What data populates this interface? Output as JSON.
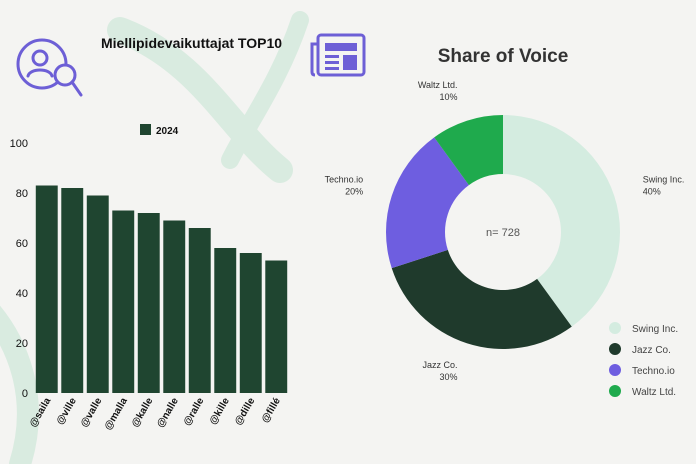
{
  "colors": {
    "background": "#f4f4f2",
    "bar": "#1f4530",
    "icon_purple": "#6d5fd6",
    "watermark": "#d9ebe0"
  },
  "icons": {
    "left": "user-search-icon",
    "right": "newspaper-icon"
  },
  "chart_data": [
    {
      "type": "bar",
      "title": "Miellipidevaikuttajat TOP10",
      "legend": [
        "2024"
      ],
      "categories": [
        "@saila",
        "@ville",
        "@valle",
        "@malla",
        "@kalle",
        "@nalle",
        "@ralle",
        "@kille",
        "@dille",
        "@fillé"
      ],
      "values": [
        83,
        82,
        79,
        73,
        72,
        69,
        66,
        58,
        56,
        53
      ],
      "ylim": [
        0,
        100
      ],
      "yticks": [
        0,
        20,
        40,
        60,
        80,
        100
      ],
      "xlabel": "",
      "ylabel": "",
      "grid": false
    },
    {
      "type": "pie",
      "title": "Share of Voice",
      "donut": true,
      "center_label": "n= 728",
      "slices": [
        {
          "label": "Swing Inc.",
          "value": 40,
          "pct_label": "40%",
          "color": "#d4ece0"
        },
        {
          "label": "Jazz Co.",
          "value": 30,
          "pct_label": "30%",
          "color": "#1f3a2c"
        },
        {
          "label": "Techno.io",
          "value": 20,
          "pct_label": "20%",
          "color": "#6e5ee0"
        },
        {
          "label": "Waltz Ltd.",
          "value": 10,
          "pct_label": "10%",
          "color": "#1faa4d"
        }
      ],
      "legend_position": "bottom-right"
    }
  ]
}
